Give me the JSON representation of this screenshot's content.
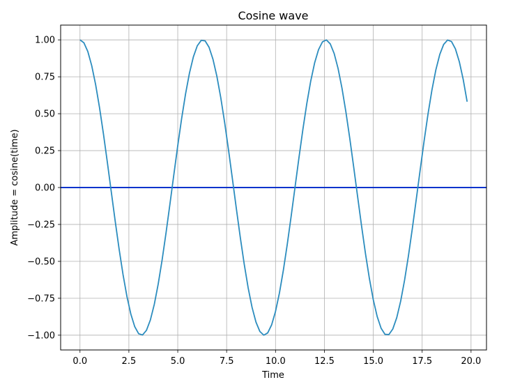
{
  "chart_data": {
    "type": "line",
    "title": "Cosine wave",
    "xlabel": "Time",
    "ylabel": "Amplitude = cosine(time)",
    "xlim": [
      -0.99,
      20.79
    ],
    "ylim": [
      -1.1,
      1.1
    ],
    "xticks": [
      0.0,
      2.5,
      5.0,
      7.5,
      10.0,
      12.5,
      15.0,
      17.5,
      20.0
    ],
    "xtick_labels": [
      "0.0",
      "2.5",
      "5.0",
      "7.5",
      "10.0",
      "12.5",
      "15.0",
      "17.5",
      "20.0"
    ],
    "yticks": [
      1.0,
      0.75,
      0.5,
      0.25,
      0.0,
      -0.25,
      -0.5,
      -0.75,
      -1.0
    ],
    "ytick_labels": [
      "1.00",
      "0.75",
      "0.50",
      "0.25",
      "0.00",
      "−0.25",
      "−0.50",
      "−0.75",
      "−1.00"
    ],
    "grid": true,
    "series": [
      {
        "function": "cos",
        "x_start": 0.0,
        "x_end": 19.8,
        "x_step": 0.2,
        "color": "#2b8cbe"
      }
    ],
    "hlines": [
      {
        "y": 0.0,
        "color": "#0033cc"
      }
    ]
  }
}
